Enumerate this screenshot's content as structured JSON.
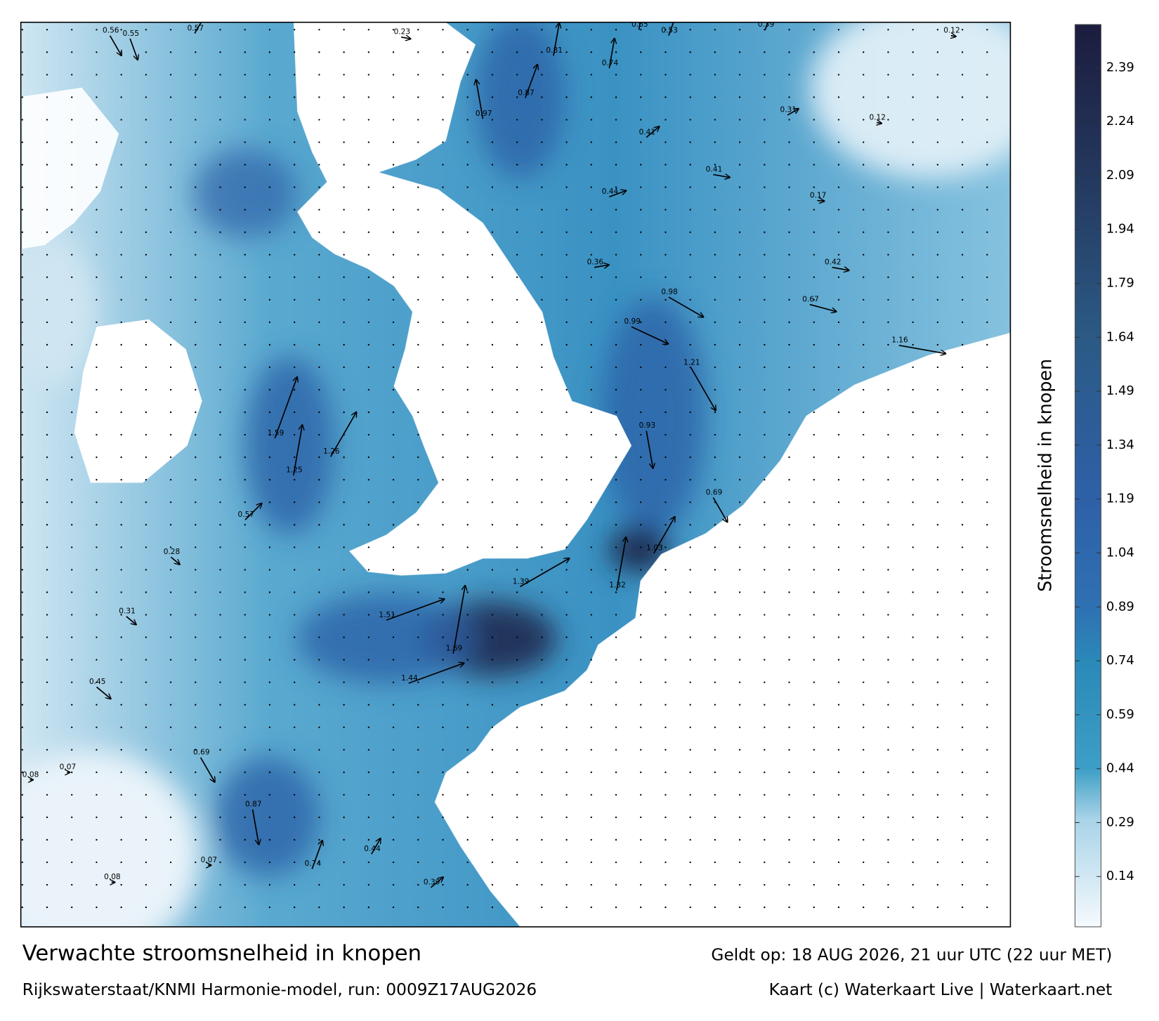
{
  "map": {
    "title": "Verwachte stroomsnelheid in knopen",
    "valid_time": "Geldt op: 18 AUG 2026, 21 uur UTC (22 uur MET)",
    "model_run": "Rijkswaterstaat/KNMI Harmonie-model, run: 0009Z17AUG2026",
    "credit": "Kaart (c) Waterkaart Live | Waterkaart.net",
    "colorbar": {
      "label": "Stroomsnelheid in knopen",
      "lim": [
        0,
        2.51
      ],
      "ticks": [
        0.14,
        0.29,
        0.44,
        0.59,
        0.74,
        0.89,
        1.04,
        1.19,
        1.34,
        1.49,
        1.64,
        1.79,
        1.94,
        2.09,
        2.24,
        2.39
      ],
      "colorscale": [
        [
          0,
          "#f5fafd"
        ],
        [
          0.3,
          "#a9d3e8"
        ],
        [
          0.44,
          "#3d9fc6"
        ],
        [
          0.74,
          "#2a89b8"
        ],
        [
          0.89,
          "#2f70b3"
        ],
        [
          1.19,
          "#2e60a8"
        ],
        [
          1.64,
          "#2b5a85"
        ],
        [
          2.09,
          "#24385e"
        ],
        [
          2.51,
          "#1c1c3e"
        ]
      ]
    },
    "speed_samples": [
      0.56,
      0.55,
      0.57,
      0.23,
      0.65,
      0.53,
      0.39,
      0.12,
      0.81,
      0.74,
      0.87,
      0.97,
      0.41,
      0.31,
      0.12,
      0.44,
      0.41,
      0.17,
      0.36,
      0.42,
      0.98,
      0.67,
      0.99,
      1.16,
      1.21,
      0.93,
      0.69,
      1.03,
      1.32,
      1.39,
      1.51,
      1.69,
      1.44,
      1.25,
      1.59,
      1.26,
      0.57,
      0.28,
      0.31,
      0.45,
      0.69,
      0.87,
      0.74,
      0.44,
      0.39,
      0.08,
      0.07,
      0.07,
      0.08
    ]
  }
}
